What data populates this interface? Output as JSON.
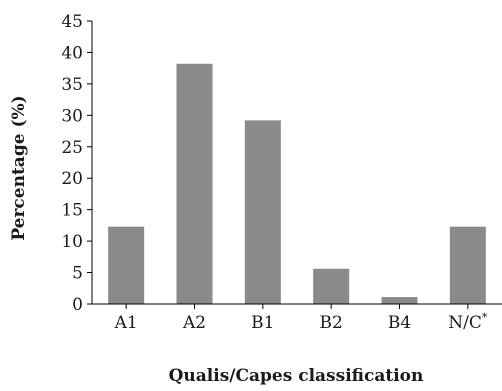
{
  "chart_data": {
    "type": "bar",
    "categories": [
      "A1",
      "A2",
      "B1",
      "B2",
      "B4",
      "N/C"
    ],
    "category_superscripts": [
      "",
      "",
      "",
      "",
      "",
      "*"
    ],
    "values": [
      12.3,
      38.2,
      29.2,
      5.6,
      1.1,
      12.3
    ],
    "xlabel": "Qualis/Capes classification",
    "ylabel": "Percentage (%)",
    "ylim": [
      0,
      45
    ],
    "yticks": [
      0,
      5,
      10,
      15,
      20,
      25,
      30,
      35,
      40,
      45
    ],
    "grid": false,
    "legend": "none",
    "bar_color": "#8a8a8a"
  }
}
